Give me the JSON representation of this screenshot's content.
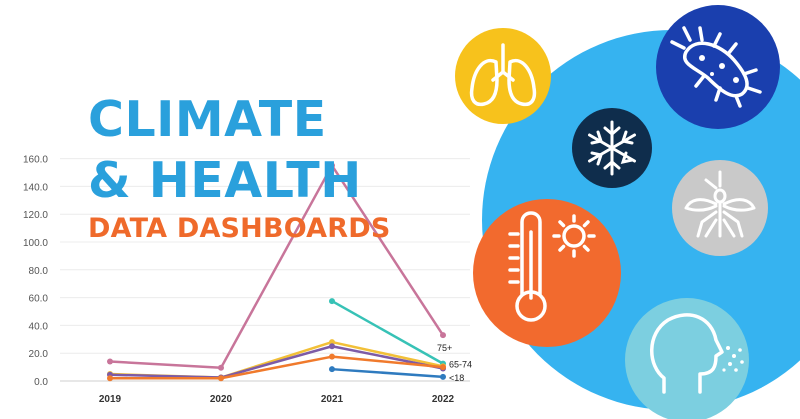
{
  "chart_data": {
    "type": "line",
    "x": [
      "2019",
      "2020",
      "2021",
      "2022"
    ],
    "ylim": [
      0,
      160
    ],
    "yticks": [
      "0.0",
      "20.0",
      "40.0",
      "60.0",
      "80.0",
      "100.0",
      "120.0",
      "140.0",
      "160.0"
    ],
    "grid": true,
    "series": [
      {
        "name": "75+",
        "color": "#c8759a",
        "values": [
          14,
          9.5,
          155,
          33
        ]
      },
      {
        "name": "65-74",
        "color": "#37c2b6",
        "values": [
          null,
          null,
          57.5,
          12.5
        ]
      },
      {
        "name": "",
        "color": "#f2c038",
        "values": [
          5,
          2.5,
          28,
          10.5
        ]
      },
      {
        "name": "",
        "color": "#7d5ba6",
        "values": [
          4.5,
          2.5,
          25,
          9
        ]
      },
      {
        "name": "",
        "color": "#f07a2c",
        "values": [
          2,
          2,
          17.5,
          10
        ]
      },
      {
        "name": "<18",
        "color": "#2f7bbf",
        "values": [
          null,
          null,
          8.5,
          3
        ]
      }
    ]
  },
  "headline": {
    "line1": "CLIMATE",
    "line2": "& HEALTH",
    "line3": "DATA DASHBOARDS"
  },
  "colors": {
    "big_circle": "#36b3f0",
    "yellow": "#f7c21c",
    "navy": "#0f2d4c",
    "blue": "#1a3fae",
    "grey": "#c9c9c9",
    "orange": "#f26a2e",
    "light_blue": "#7ccfe0"
  },
  "icons": [
    "lungs-icon",
    "snowflake-icon",
    "bacteria-icon",
    "thermometer-sun-icon",
    "mosquito-icon",
    "head-breathing-icon"
  ]
}
